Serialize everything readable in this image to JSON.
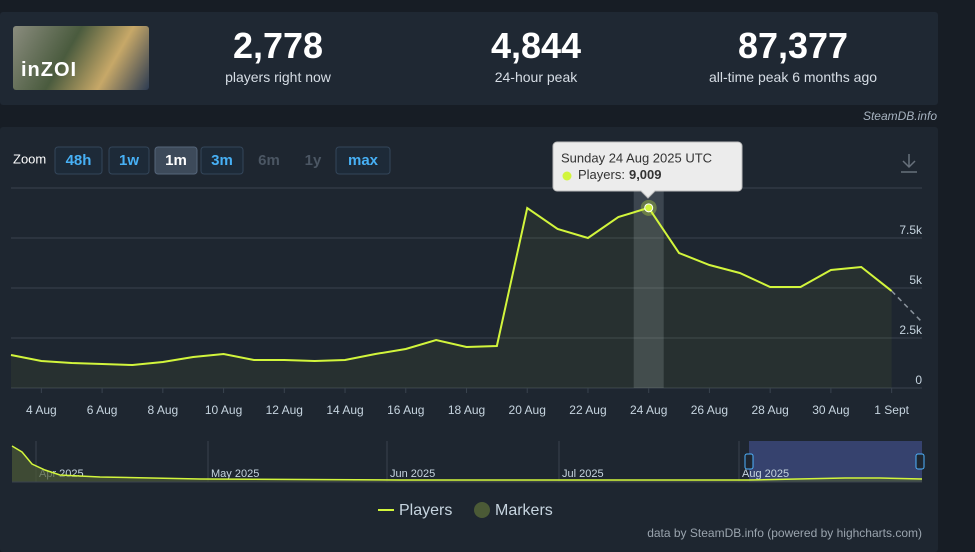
{
  "game_logo": "inZOI",
  "stats": [
    {
      "value": "2,778",
      "label": "players right now"
    },
    {
      "value": "4,844",
      "label": "24-hour peak"
    },
    {
      "value": "87,377",
      "label": "all-time peak 6 months ago"
    }
  ],
  "source": "SteamDB.info",
  "zoom": {
    "label": "Zoom",
    "buttons": [
      "48h",
      "1w",
      "1m",
      "3m",
      "6m",
      "1y",
      "max"
    ],
    "active": "1m",
    "disabled": [
      "6m",
      "1y"
    ]
  },
  "chart_data": {
    "type": "line",
    "x": [
      "2025-08-03",
      "2025-08-04",
      "2025-08-05",
      "2025-08-06",
      "2025-08-07",
      "2025-08-08",
      "2025-08-09",
      "2025-08-10",
      "2025-08-11",
      "2025-08-12",
      "2025-08-13",
      "2025-08-14",
      "2025-08-15",
      "2025-08-16",
      "2025-08-17",
      "2025-08-18",
      "2025-08-19",
      "2025-08-20",
      "2025-08-21",
      "2025-08-22",
      "2025-08-23",
      "2025-08-24",
      "2025-08-25",
      "2025-08-26",
      "2025-08-27",
      "2025-08-28",
      "2025-08-29",
      "2025-08-30",
      "2025-08-31",
      "2025-09-01",
      "2025-09-02"
    ],
    "series": [
      {
        "name": "Players",
        "color": "#d2f53c",
        "values": [
          1650,
          1350,
          1250,
          1200,
          1150,
          1300,
          1550,
          1700,
          1400,
          1400,
          1350,
          1400,
          1700,
          1950,
          2400,
          2050,
          2100,
          9000,
          7950,
          7500,
          8550,
          9009,
          6750,
          6150,
          5750,
          5050,
          5050,
          5900,
          6050,
          4850,
          3300
        ]
      }
    ],
    "dashed_last_segment": true,
    "markers": {
      "name": "Markers",
      "color": "#4b5a36"
    },
    "xlim": [
      "2025-08-03",
      "2025-09-02"
    ],
    "xticks": [
      {
        "value": "2025-08-04",
        "label": "4 Aug"
      },
      {
        "value": "2025-08-06",
        "label": "6 Aug"
      },
      {
        "value": "2025-08-08",
        "label": "8 Aug"
      },
      {
        "value": "2025-08-10",
        "label": "10 Aug"
      },
      {
        "value": "2025-08-12",
        "label": "12 Aug"
      },
      {
        "value": "2025-08-14",
        "label": "14 Aug"
      },
      {
        "value": "2025-08-16",
        "label": "16 Aug"
      },
      {
        "value": "2025-08-18",
        "label": "18 Aug"
      },
      {
        "value": "2025-08-20",
        "label": "20 Aug"
      },
      {
        "value": "2025-08-22",
        "label": "22 Aug"
      },
      {
        "value": "2025-08-24",
        "label": "24 Aug"
      },
      {
        "value": "2025-08-26",
        "label": "26 Aug"
      },
      {
        "value": "2025-08-28",
        "label": "28 Aug"
      },
      {
        "value": "2025-08-30",
        "label": "30 Aug"
      },
      {
        "value": "2025-09-01",
        "label": "1 Sept"
      }
    ],
    "ylim": [
      0,
      10000
    ],
    "yticks": [
      0,
      {
        "value": 2500,
        "label": "2.5k"
      },
      {
        "value": 5000,
        "label": "5k"
      },
      {
        "value": 7500,
        "label": "7.5k"
      }
    ],
    "grid": true,
    "tooltip": {
      "index": 21,
      "date": "Sunday 24 Aug 2025 UTC",
      "label": "Players:",
      "value_label": "9,009"
    },
    "navigator": {
      "labels": [
        "Apr 2025",
        "May 2025",
        "Jun 2025",
        "Jul 2025",
        "Aug 2025"
      ]
    },
    "credit": "data by SteamDB.info (powered by highcharts.com)"
  }
}
